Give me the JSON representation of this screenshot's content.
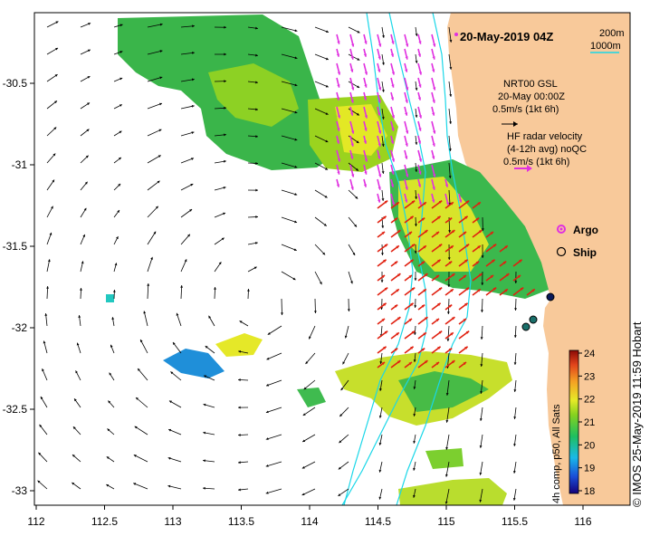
{
  "map": {
    "title": "20-May-2019 04Z",
    "x_ticks": [
      "112",
      "112.5",
      "113",
      "113.5",
      "114",
      "114.5",
      "115",
      "115.5",
      "116"
    ],
    "y_ticks": [
      "-30.5",
      "-31",
      "-31.5",
      "-32",
      "-32.5",
      "-33"
    ],
    "credit": "© IMOS 25-May-2019 11:59 Hobart",
    "bathymetry": {
      "label_200": "200m",
      "label_1000": "1000m"
    },
    "legend_nrt": {
      "line1": "NRT00 GSL",
      "line2": "20-May 00:00Z",
      "line3": "0.5m/s (1kt 6h)"
    },
    "legend_hf": {
      "line1": "HF radar velocity",
      "line2": "(4-12h avg) noQC",
      "line3": "0.5m/s (1kt 6h)"
    },
    "markers": {
      "argo": "Argo",
      "ship": "Ship"
    },
    "colorbar": {
      "ticks": [
        "24",
        "23",
        "22",
        "21",
        "20",
        "19",
        "18"
      ],
      "label": "4h comp, p50, All Sats",
      "min": 18,
      "max": 24
    },
    "colors": {
      "land": "#f8c99a",
      "ocean": "#ffffff",
      "isobath": "#19d7e8",
      "argo": "#e030e0",
      "nrt_vector": "#000000",
      "hf_vector_magenta": "#e030e0",
      "hf_vector_red": "#e02010"
    }
  }
}
